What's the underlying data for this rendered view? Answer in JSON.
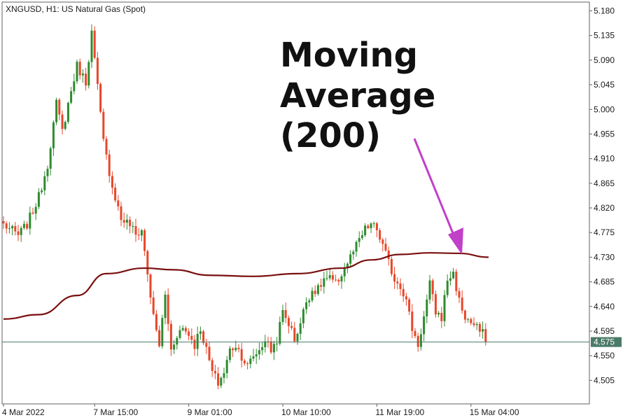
{
  "chart_data": {
    "type": "candlestick",
    "title": "XNGUSD, H1:  US Natural Gas (Spot)",
    "ylim": [
      4.462,
      5.196
    ],
    "yticks": [
      "5.180",
      "5.135",
      "5.090",
      "5.045",
      "5.000",
      "4.955",
      "4.910",
      "4.865",
      "4.820",
      "4.775",
      "4.730",
      "4.685",
      "4.640",
      "4.595",
      "4.550",
      "4.505"
    ],
    "xticks": [
      {
        "label": "4 Mar 2022",
        "index": 0
      },
      {
        "label": "7 Mar 15:00",
        "index": 31
      },
      {
        "label": "9 Mar 01:00",
        "index": 63
      },
      {
        "label": "10 Mar 10:00",
        "index": 95
      },
      {
        "label": "11 Mar 19:00",
        "index": 127
      },
      {
        "label": "15 Mar 04:00",
        "index": 159
      }
    ],
    "current_price": 4.575,
    "current_price_label": "4.575",
    "up_color": "#2e8b2e",
    "down_color": "#e8462a",
    "ma_color": "#7a0f0f",
    "price_line_color": "#4a7a68",
    "moving_average": {
      "period_label": "Moving Average (200)",
      "points": [
        [
          0,
          4.617
        ],
        [
          12,
          4.625
        ],
        [
          25,
          4.66
        ],
        [
          35,
          4.7
        ],
        [
          48,
          4.71
        ],
        [
          58,
          4.707
        ],
        [
          70,
          4.697
        ],
        [
          85,
          4.695
        ],
        [
          100,
          4.7
        ],
        [
          115,
          4.71
        ],
        [
          125,
          4.725
        ],
        [
          135,
          4.735
        ],
        [
          145,
          4.738
        ],
        [
          155,
          4.737
        ],
        [
          165,
          4.73
        ]
      ]
    },
    "close_path": [
      [
        0,
        4.79
      ],
      [
        5,
        4.77
      ],
      [
        8,
        4.79
      ],
      [
        12,
        4.84
      ],
      [
        15,
        4.9
      ],
      [
        18,
        5.01
      ],
      [
        20,
        4.96
      ],
      [
        22,
        5.01
      ],
      [
        25,
        5.08
      ],
      [
        28,
        5.05
      ],
      [
        30,
        5.14
      ],
      [
        32,
        5.04
      ],
      [
        34,
        4.94
      ],
      [
        37,
        4.86
      ],
      [
        40,
        4.8
      ],
      [
        43,
        4.79
      ],
      [
        45,
        4.77
      ],
      [
        47,
        4.78
      ],
      [
        49,
        4.7
      ],
      [
        51,
        4.62
      ],
      [
        53,
        4.57
      ],
      [
        55,
        4.66
      ],
      [
        57,
        4.56
      ],
      [
        59,
        4.59
      ],
      [
        61,
        4.6
      ],
      [
        63,
        4.59
      ],
      [
        65,
        4.57
      ],
      [
        67,
        4.6
      ],
      [
        69,
        4.56
      ],
      [
        71,
        4.52
      ],
      [
        73,
        4.5
      ],
      [
        75,
        4.52
      ],
      [
        77,
        4.56
      ],
      [
        79,
        4.57
      ],
      [
        81,
        4.55
      ],
      [
        83,
        4.53
      ],
      [
        85,
        4.55
      ],
      [
        87,
        4.56
      ],
      [
        89,
        4.58
      ],
      [
        91,
        4.56
      ],
      [
        93,
        4.58
      ],
      [
        95,
        4.63
      ],
      [
        97,
        4.61
      ],
      [
        99,
        4.58
      ],
      [
        101,
        4.61
      ],
      [
        103,
        4.65
      ],
      [
        105,
        4.67
      ],
      [
        107,
        4.67
      ],
      [
        109,
        4.69
      ],
      [
        111,
        4.69
      ],
      [
        113,
        4.68
      ],
      [
        115,
        4.7
      ],
      [
        117,
        4.72
      ],
      [
        119,
        4.74
      ],
      [
        121,
        4.76
      ],
      [
        123,
        4.78
      ],
      [
        125,
        4.79
      ],
      [
        127,
        4.78
      ],
      [
        129,
        4.75
      ],
      [
        131,
        4.72
      ],
      [
        133,
        4.69
      ],
      [
        135,
        4.68
      ],
      [
        137,
        4.65
      ],
      [
        139,
        4.6
      ],
      [
        141,
        4.57
      ],
      [
        143,
        4.62
      ],
      [
        145,
        4.68
      ],
      [
        147,
        4.63
      ],
      [
        149,
        4.62
      ],
      [
        151,
        4.69
      ],
      [
        153,
        4.7
      ],
      [
        155,
        4.65
      ],
      [
        157,
        4.62
      ],
      [
        159,
        4.61
      ],
      [
        161,
        4.6
      ],
      [
        163,
        4.59
      ],
      [
        164,
        4.575
      ]
    ]
  },
  "annotation": {
    "lines": [
      "Moving",
      "Average",
      "(200)"
    ],
    "arrow_color": "#c040c8"
  }
}
